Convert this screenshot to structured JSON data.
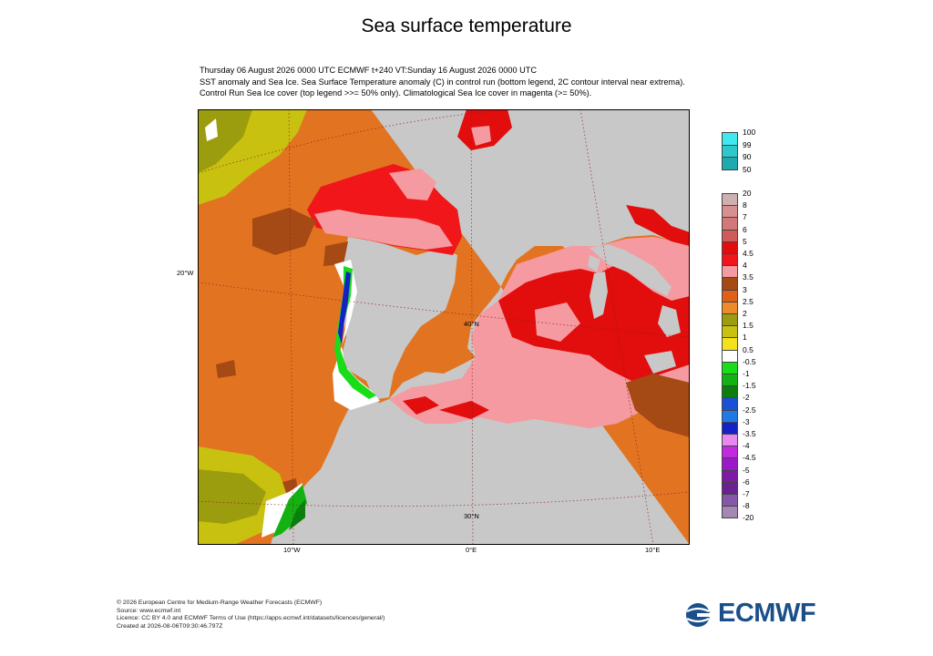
{
  "title": "Sea surface temperature",
  "subtitle": [
    "Thursday 06 August 2026 0000 UTC  ECMWF  t+240  VT:Sunday 16 August 2026 0000 UTC",
    "SST anomaly and Sea Ice. Sea Surface Temperature anomaly (C) in control run (bottom legend, 2C contour interval near extrema).",
    "Control Run Sea Ice cover (top legend >>= 50% only). Climatological Sea Ice cover in magenta (>= 50%)."
  ],
  "map": {
    "axis_labels": {
      "lat_40": "40°N",
      "lat_30": "30°N",
      "lon_20w": "20°W",
      "lon_10w": "10°W",
      "lon_0": "0°E",
      "lon_10e": "10°E"
    },
    "land_color": "#c8c8c8",
    "ocean_dominant_anomaly_colors": [
      "#e27421",
      "#f2a3a4",
      "#e51d24",
      "#b5b818",
      "#a4521c"
    ]
  },
  "ice_legend": {
    "labels": [
      "100",
      "99",
      "90",
      "50"
    ],
    "colors": [
      "#3fe9ef",
      "#2dc8cc",
      "#20aab0"
    ]
  },
  "anomaly_legend": {
    "labels": [
      "20",
      "8",
      "7",
      "6",
      "5",
      "4.5",
      "4",
      "3.5",
      "3",
      "2.5",
      "2",
      "1.5",
      "1",
      "0.5",
      "-0.5",
      "-1",
      "-1.5",
      "-2",
      "-2.5",
      "-3",
      "-3.5",
      "-4",
      "-4.5",
      "-5",
      "-6",
      "-7",
      "-8",
      "-20"
    ],
    "colors": [
      "#cfb0b0",
      "#d88f8f",
      "#d27878",
      "#cf5b5b",
      "#e20d0d",
      "#f0161a",
      "#f59aa0",
      "#a64a15",
      "#e06018",
      "#ef8a2a",
      "#9c9c0f",
      "#c9c10f",
      "#f3e21a",
      "#ffffff",
      "#19dd19",
      "#12b212",
      "#0c7e0c",
      "#1a50d8",
      "#1f7ae8",
      "#1420c8",
      "#e787ef",
      "#c12ae0",
      "#9b19c8",
      "#7e1aa6",
      "#6a2292",
      "#8557a8",
      "#a487b5"
    ]
  },
  "footer": [
    "© 2026 European Centre for Medium-Range Weather Forecasts (ECMWF)",
    "Source: www.ecmwf.int",
    "Licence: CC BY 4.0 and ECMWF Terms of Use (https://apps.ecmwf.int/datasets/licences/general/)",
    "Created at 2026-08-06T09:30:46.797Z"
  ],
  "logo": {
    "text": "ECMWF",
    "color": "#1b4f8a"
  }
}
